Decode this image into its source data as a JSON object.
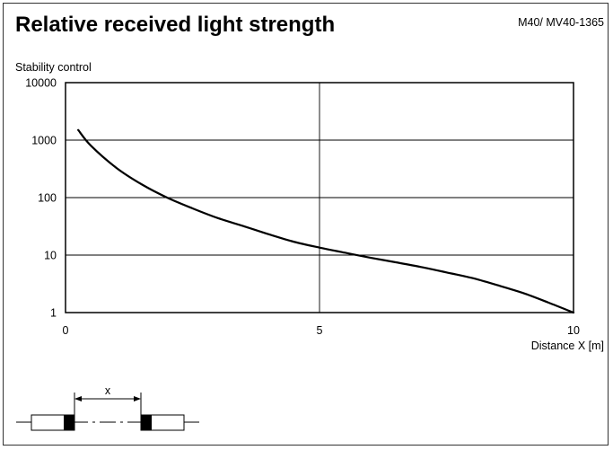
{
  "header": {
    "title": "Relative received light strength",
    "doc_id": "M40/ MV40-1365"
  },
  "chart_data": {
    "type": "line",
    "title": "Relative received light strength",
    "xlabel": "Distance X [m]",
    "ylabel": "Stability control",
    "xlim": [
      0,
      10
    ],
    "ylim": [
      1,
      10000
    ],
    "yscale": "log",
    "grid": true,
    "x_ticks": [
      "0",
      "5",
      "10"
    ],
    "y_ticks": [
      "1",
      "10",
      "100",
      "1000",
      "10000"
    ],
    "series": [
      {
        "x": [
          0.25,
          0.5,
          1,
          1.5,
          2,
          2.5,
          3,
          3.5,
          4,
          4.5,
          5,
          5.5,
          6,
          6.5,
          7,
          7.5,
          8,
          8.5,
          9,
          9.5,
          10
        ],
        "y": [
          1500,
          800,
          330,
          170,
          100,
          65,
          44,
          32,
          23,
          17,
          13.5,
          11,
          9,
          7.5,
          6.2,
          5,
          4,
          3,
          2.2,
          1.5,
          1
        ]
      }
    ]
  },
  "diagram": {
    "distance_label": "x"
  }
}
